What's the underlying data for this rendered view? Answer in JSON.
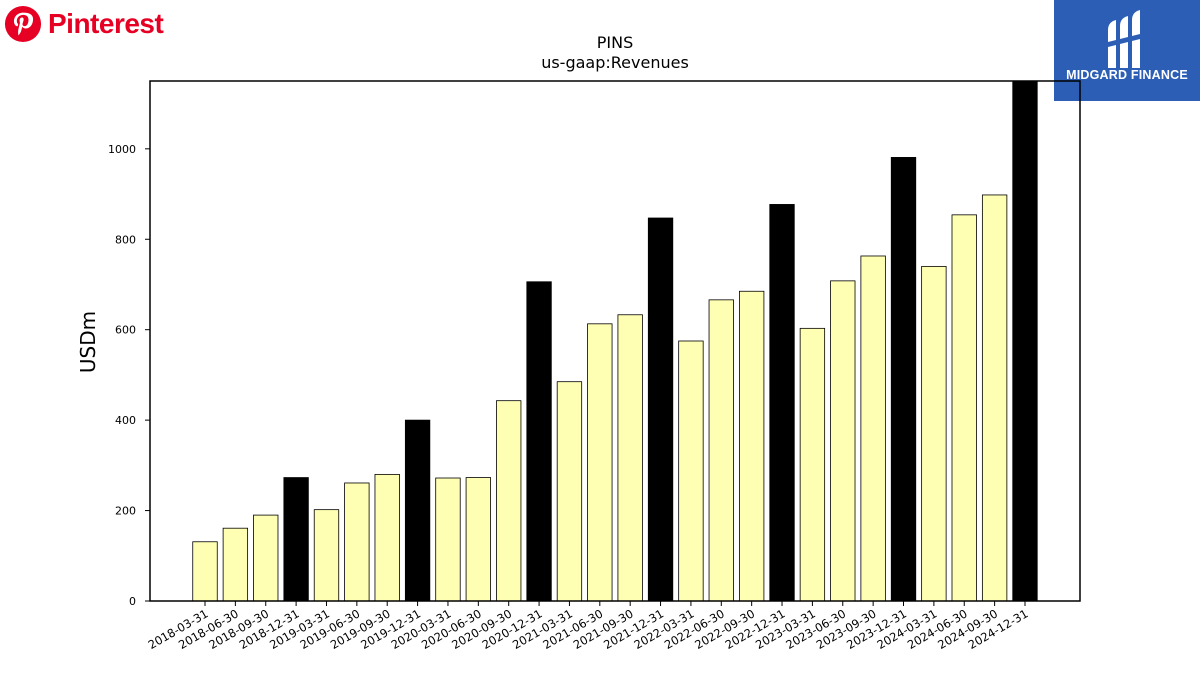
{
  "branding": {
    "left_name": "Pinterest",
    "right_name": "MIDGARD FINANCE",
    "colors": {
      "pinterest_red": "#e60023",
      "midgard_blue": "#2b5eb4"
    }
  },
  "chart_data": {
    "type": "bar",
    "title": "PINS",
    "subtitle": "us-gaap:Revenues",
    "xlabel": "",
    "ylabel": "USDm",
    "ylim": [
      0,
      1150
    ],
    "yticks": [
      0,
      200,
      400,
      600,
      800,
      1000
    ],
    "grid": false,
    "legend": "none",
    "colors": {
      "quarter": "#ffffb3",
      "year_end": "#000000"
    },
    "categories": [
      "2018-03-31",
      "2018-06-30",
      "2018-09-30",
      "2018-12-31",
      "2019-03-31",
      "2019-06-30",
      "2019-09-30",
      "2019-12-31",
      "2020-03-31",
      "2020-06-30",
      "2020-09-30",
      "2020-12-31",
      "2021-03-31",
      "2021-06-30",
      "2021-09-30",
      "2021-12-31",
      "2022-03-31",
      "2022-06-30",
      "2022-09-30",
      "2022-12-31",
      "2023-03-31",
      "2023-06-30",
      "2023-09-30",
      "2023-12-31",
      "2024-03-31",
      "2024-06-30",
      "2024-09-30",
      "2024-12-31"
    ],
    "values": [
      131,
      161,
      190,
      273,
      202,
      261,
      280,
      400,
      272,
      273,
      443,
      706,
      485,
      613,
      633,
      847,
      575,
      666,
      685,
      877,
      603,
      708,
      763,
      981,
      740,
      854,
      898,
      1154
    ]
  }
}
